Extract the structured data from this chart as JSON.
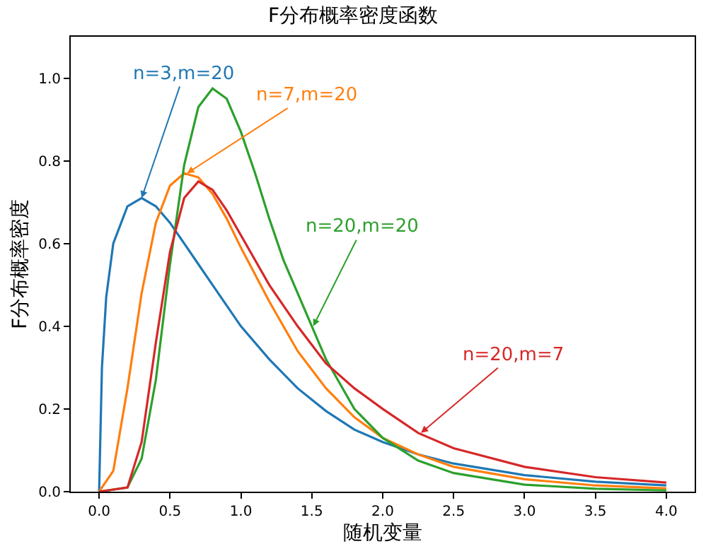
{
  "chart_data": {
    "type": "line",
    "title": "F分布概率密度函数",
    "xlabel": "随机变量",
    "ylabel": "F分布概率密度",
    "xlim": [
      -0.2,
      4.2
    ],
    "ylim": [
      0,
      1.1
    ],
    "xticks": [
      {
        "value": 0,
        "label": "0.0"
      },
      {
        "value": 0.5,
        "label": "0.5"
      },
      {
        "value": 1,
        "label": "1.0"
      },
      {
        "value": 1.5,
        "label": "1.5"
      },
      {
        "value": 2,
        "label": "2.0"
      },
      {
        "value": 2.5,
        "label": "2.5"
      },
      {
        "value": 3,
        "label": "3.0"
      },
      {
        "value": 3.5,
        "label": "3.5"
      },
      {
        "value": 4,
        "label": "4.0"
      }
    ],
    "yticks": [
      {
        "value": 0,
        "label": "0.0"
      },
      {
        "value": 0.2,
        "label": "0.2"
      },
      {
        "value": 0.4,
        "label": "0.4"
      },
      {
        "value": 0.6,
        "label": "0.6"
      },
      {
        "value": 0.8,
        "label": "0.8"
      },
      {
        "value": 1,
        "label": "1.0"
      }
    ],
    "marker": "none",
    "line_style": "solid",
    "series": [
      {
        "color": "#1f77b4",
        "x": [
          0,
          0.02,
          0.05,
          0.1,
          0.2,
          0.3,
          0.4,
          0.5,
          0.6,
          0.7,
          0.8,
          0.9,
          1.0,
          1.2,
          1.4,
          1.6,
          1.8,
          2.0,
          2.25,
          2.5,
          3.0,
          3.5,
          4.0
        ],
        "values": [
          0,
          0.3,
          0.47,
          0.6,
          0.69,
          0.71,
          0.69,
          0.65,
          0.6,
          0.55,
          0.5,
          0.45,
          0.4,
          0.32,
          0.25,
          0.195,
          0.15,
          0.12,
          0.09,
          0.068,
          0.04,
          0.024,
          0.015
        ]
      },
      {
        "color": "#ff7f0e",
        "x": [
          0,
          0.1,
          0.2,
          0.3,
          0.4,
          0.5,
          0.6,
          0.7,
          0.8,
          0.9,
          1.0,
          1.2,
          1.4,
          1.6,
          1.8,
          2.0,
          2.25,
          2.5,
          3.0,
          3.5,
          4.0
        ],
        "values": [
          0,
          0.05,
          0.25,
          0.48,
          0.65,
          0.74,
          0.77,
          0.76,
          0.72,
          0.66,
          0.59,
          0.46,
          0.34,
          0.25,
          0.18,
          0.13,
          0.09,
          0.06,
          0.03,
          0.015,
          0.008
        ]
      },
      {
        "color": "#2ca02c",
        "x": [
          0,
          0.2,
          0.3,
          0.4,
          0.5,
          0.6,
          0.7,
          0.8,
          0.9,
          1.0,
          1.1,
          1.2,
          1.3,
          1.4,
          1.5,
          1.6,
          1.8,
          2.0,
          2.25,
          2.5,
          3.0,
          3.5,
          4.0
        ],
        "values": [
          0,
          0.01,
          0.08,
          0.27,
          0.55,
          0.79,
          0.93,
          0.975,
          0.95,
          0.87,
          0.77,
          0.66,
          0.56,
          0.48,
          0.4,
          0.32,
          0.2,
          0.13,
          0.075,
          0.045,
          0.017,
          0.007,
          0.003
        ]
      },
      {
        "color": "#d62728",
        "x": [
          0,
          0.2,
          0.3,
          0.4,
          0.5,
          0.6,
          0.7,
          0.8,
          0.9,
          1.0,
          1.2,
          1.4,
          1.6,
          1.8,
          2.0,
          2.25,
          2.5,
          3.0,
          3.5,
          4.0
        ],
        "values": [
          0,
          0.01,
          0.12,
          0.36,
          0.58,
          0.71,
          0.75,
          0.73,
          0.68,
          0.62,
          0.5,
          0.4,
          0.31,
          0.25,
          0.2,
          0.142,
          0.105,
          0.06,
          0.035,
          0.022
        ]
      }
    ],
    "annotations": [
      {
        "text": "n=3,m=20",
        "x": 0.3,
        "y": 0.71
      },
      {
        "text": "n=7,m=20",
        "x": 0.62,
        "y": 0.77
      },
      {
        "text": "n=20,m=20",
        "x": 1.51,
        "y": 0.4
      },
      {
        "text": "n=20,m=7",
        "x": 2.27,
        "y": 0.142
      }
    ]
  }
}
